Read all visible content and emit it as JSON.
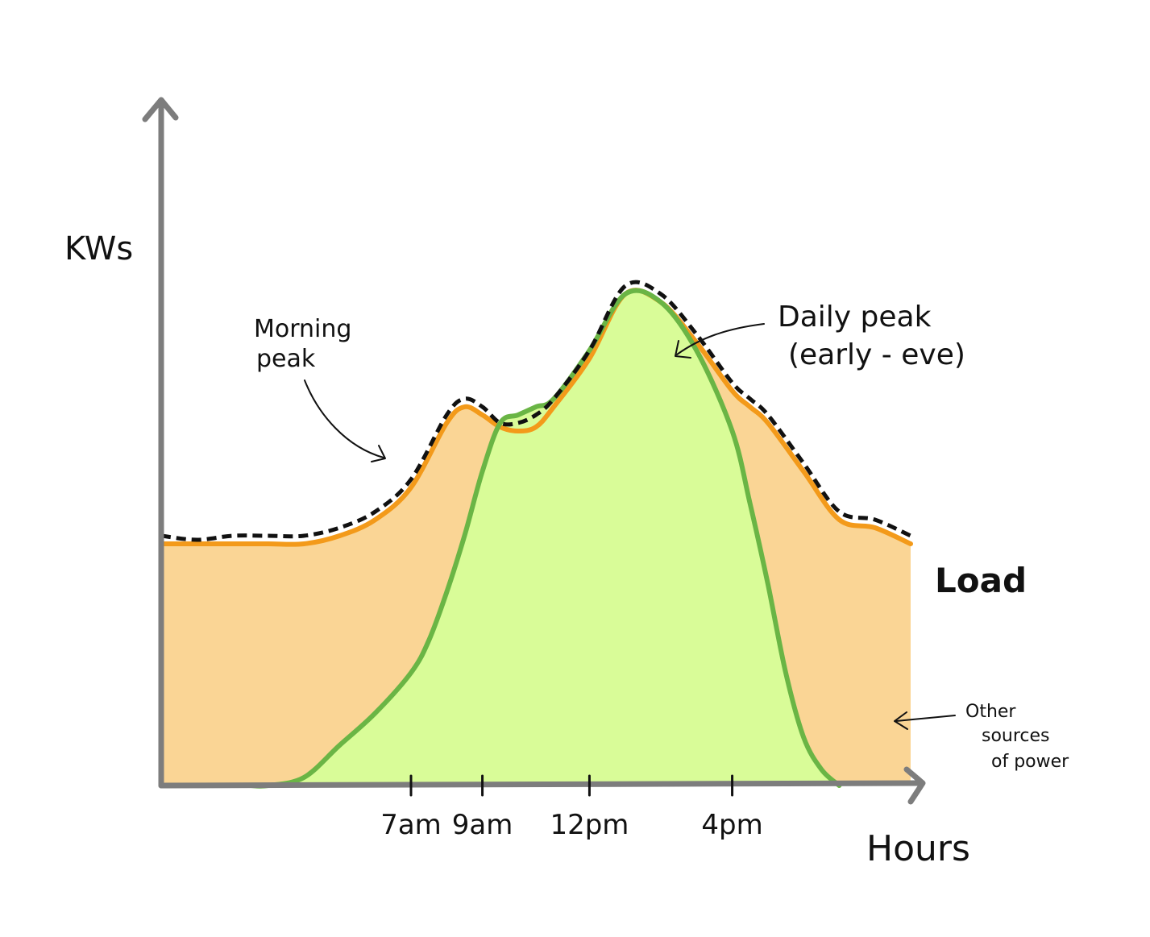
{
  "colors": {
    "other_fill": "#fad595",
    "other_line": "#f39a1a",
    "solar_fill": "#d9fc98",
    "solar_line": "#6ab545",
    "load_line": "#111111",
    "axis": "#7d7d7d"
  },
  "chart_data": {
    "type": "area",
    "title": "",
    "xlabel": "Hours",
    "ylabel": "KWs",
    "x_ticks": [
      {
        "hour": 7,
        "label": "7am"
      },
      {
        "hour": 9,
        "label": "9am"
      },
      {
        "hour": 12,
        "label": "12pm"
      },
      {
        "hour": 16,
        "label": "4pm"
      }
    ],
    "xlim": [
      0,
      21
    ],
    "ylim": [
      0,
      100
    ],
    "grid": false,
    "legend": "none",
    "series": [
      {
        "name": "Load",
        "style": "dashed",
        "x": [
          0,
          1,
          2,
          3,
          4,
          5,
          6,
          7,
          8,
          8.5,
          9,
          9.5,
          10,
          10.5,
          11,
          12,
          13,
          14,
          15,
          16,
          16.5,
          17,
          18,
          19,
          20,
          21
        ],
        "y": [
          31,
          30.5,
          31,
          31,
          31,
          32,
          34,
          38,
          46,
          48,
          47,
          45,
          45,
          46,
          48,
          54,
          62,
          61,
          56,
          50,
          48,
          46,
          40,
          34,
          33,
          31
        ]
      },
      {
        "name": "Other sources of power",
        "x": [
          0,
          1,
          2,
          3,
          4,
          5,
          6,
          7,
          8,
          8.5,
          9,
          9.5,
          10,
          10.5,
          11,
          12,
          13,
          14,
          15,
          16,
          16.5,
          17,
          18,
          19,
          20,
          21
        ],
        "y": [
          30,
          30,
          30,
          30,
          30,
          31,
          33,
          37,
          45,
          47,
          46,
          44.5,
          44,
          44.5,
          47,
          53,
          61,
          60,
          55,
          49,
          47,
          45,
          39,
          33,
          32,
          30
        ]
      },
      {
        "name": "",
        "x": [
          2.5,
          3,
          4,
          5,
          6,
          7,
          7.5,
          8,
          8.5,
          9,
          9.5,
          10,
          10.5,
          11,
          12,
          13,
          14,
          15,
          16,
          16.5,
          17,
          17.5,
          18,
          18.5,
          19
        ],
        "y": [
          0,
          0,
          1,
          5,
          9,
          14,
          18,
          24,
          31,
          39,
          45,
          46,
          47,
          48,
          54,
          61,
          60,
          54,
          44,
          35,
          25,
          14,
          6,
          2,
          0
        ]
      }
    ],
    "annotations": [
      {
        "text_lines": [
          "Morning",
          "peak"
        ],
        "points_to": {
          "x": 8.5,
          "y": 48
        }
      },
      {
        "text_lines": [
          "Daily peak",
          "(early - eve)"
        ],
        "points_to": {
          "x": 13.5,
          "y": 62
        }
      },
      {
        "text_lines": [
          "Other",
          "sources",
          "of power"
        ],
        "points_to": "orange area"
      },
      {
        "text_lines": [
          "Load"
        ],
        "points_to": "dashed line end"
      }
    ]
  }
}
